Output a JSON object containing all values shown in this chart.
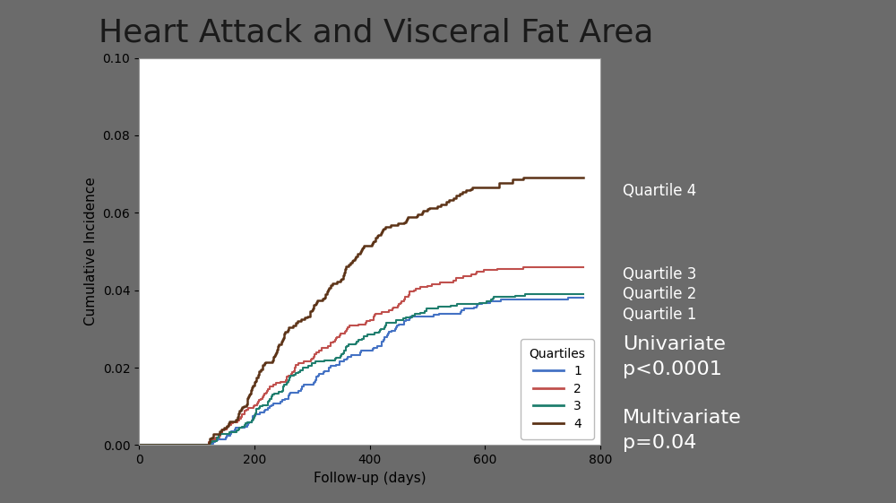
{
  "title": "Heart Attack and Visceral Fat Area",
  "xlabel": "Follow-up (days)",
  "ylabel": "Cumulative Incidence",
  "xlim": [
    0,
    800
  ],
  "ylim": [
    0,
    0.1
  ],
  "yticks": [
    0.0,
    0.02,
    0.04,
    0.06,
    0.08,
    0.1
  ],
  "xticks": [
    0,
    200,
    400,
    600,
    800
  ],
  "background_color": "#6b6b6b",
  "plot_bg_color": "#ffffff",
  "title_color": "#222222",
  "colors": {
    "q1": "#4472C4",
    "q2": "#C0504D",
    "q3": "#1F7E6E",
    "q4": "#5C3317"
  },
  "legend_title": "Quartiles",
  "legend_labels": [
    "1",
    "2",
    "3",
    "4"
  ],
  "annotation_q4": "Quartile 4",
  "annotation_q3": "Quartile 3",
  "annotation_q2": "Quartile 2",
  "annotation_q1": "Quartile 1",
  "annotation_univariate": "Univariate\np<0.0001",
  "annotation_multivariate": "Multivariate\np=0.04",
  "title_fontsize": 26,
  "axis_label_fontsize": 11,
  "tick_fontsize": 10,
  "legend_fontsize": 10,
  "annotation_fontsize": 12,
  "annot_large_fontsize": 16
}
